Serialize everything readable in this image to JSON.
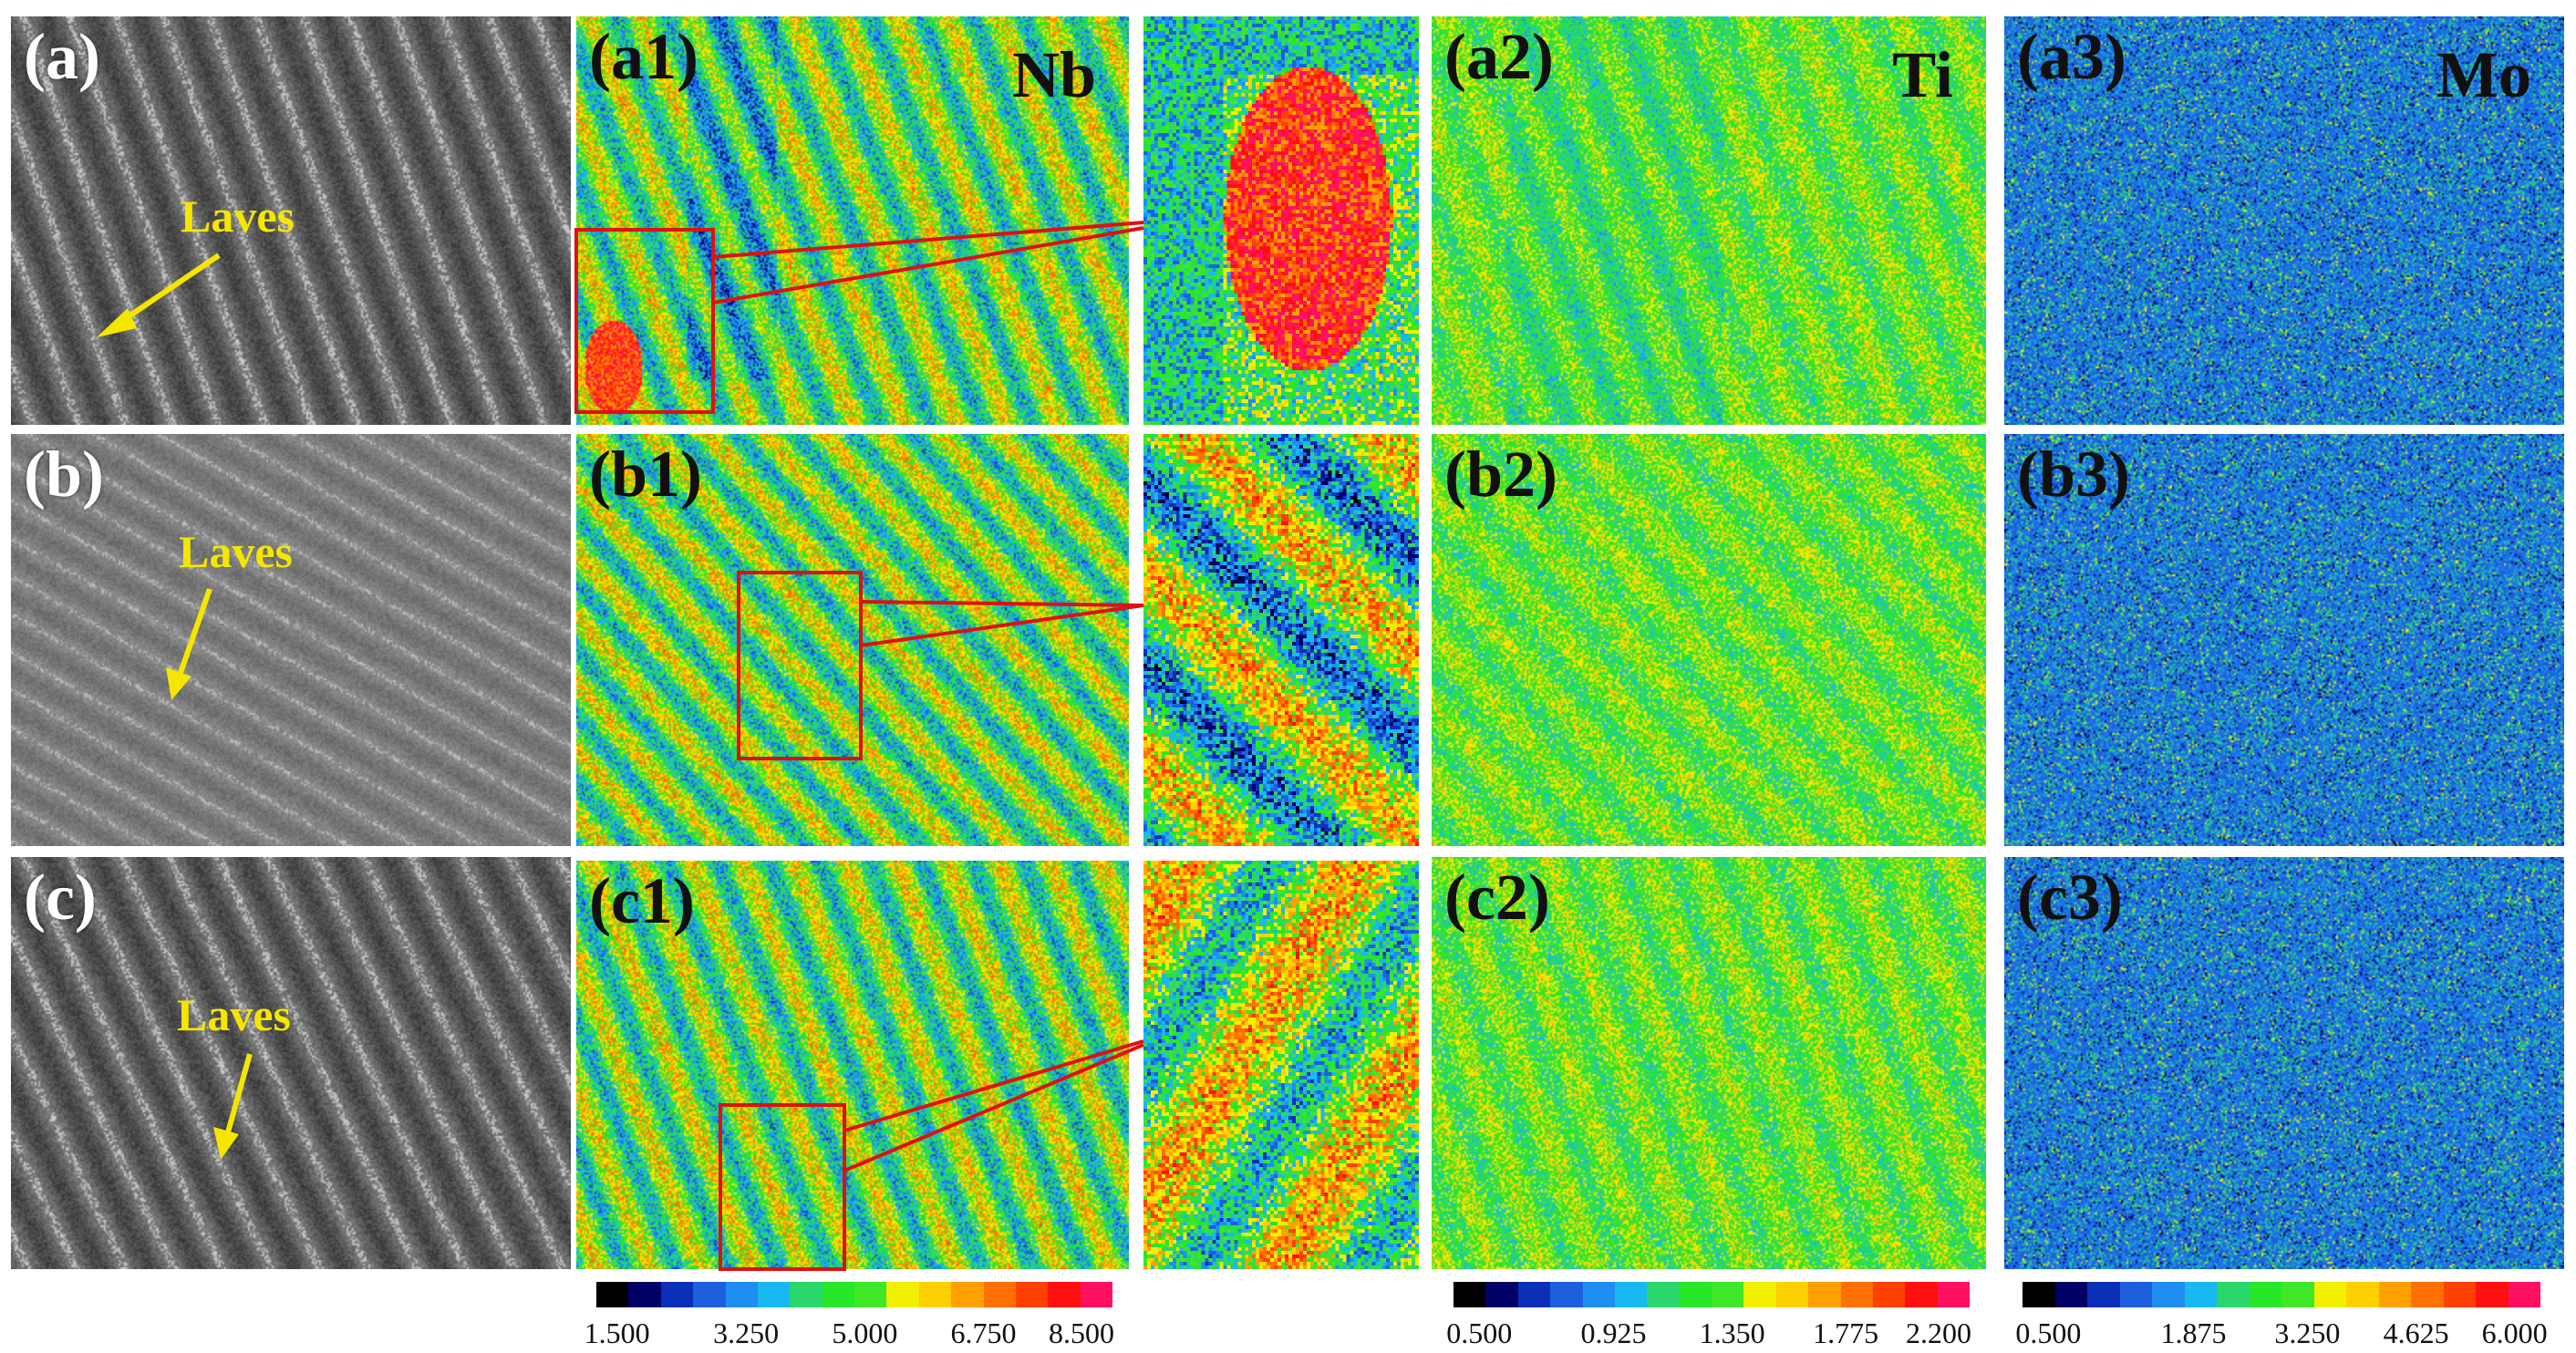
{
  "rows": [
    {
      "sem": {
        "label": "(a)",
        "annotation": "Laves"
      },
      "nb": {
        "label": "(a1)",
        "element": "Nb"
      },
      "ti": {
        "label": "(a2)",
        "element": "Ti"
      },
      "mo": {
        "label": "(a3)",
        "element": "Mo"
      }
    },
    {
      "sem": {
        "label": "(b)",
        "annotation": "Laves"
      },
      "nb": {
        "label": "(b1)",
        "element": ""
      },
      "ti": {
        "label": "(b2)",
        "element": ""
      },
      "mo": {
        "label": "(b3)",
        "element": ""
      }
    },
    {
      "sem": {
        "label": "(c)",
        "annotation": "Laves"
      },
      "nb": {
        "label": "(c1)",
        "element": ""
      },
      "ti": {
        "label": "(c2)",
        "element": ""
      },
      "mo": {
        "label": "(c3)",
        "element": ""
      }
    }
  ],
  "colorbars": {
    "nb": {
      "ticks": [
        "1.500",
        "3.250",
        "5.000",
        "6.750",
        "8.500"
      ]
    },
    "ti": {
      "ticks": [
        "0.500",
        "0.925",
        "1.350",
        "1.775",
        "2.200"
      ]
    },
    "mo": {
      "ticks": [
        "0.500",
        "1.875",
        "3.250",
        "4.625",
        "6.000"
      ]
    }
  },
  "palette": [
    "#000000",
    "#000066",
    "#0a2fb8",
    "#1c60de",
    "#1e8ef0",
    "#18b8f0",
    "#2bd66a",
    "#28e628",
    "#40e628",
    "#f0f000",
    "#ffd000",
    "#ffa000",
    "#ff7000",
    "#ff4000",
    "#ff1010",
    "#ff1060"
  ],
  "colors": {
    "annotation": "#f5e600",
    "zoom_box": "#e01010",
    "arrow": "#f5e600"
  }
}
